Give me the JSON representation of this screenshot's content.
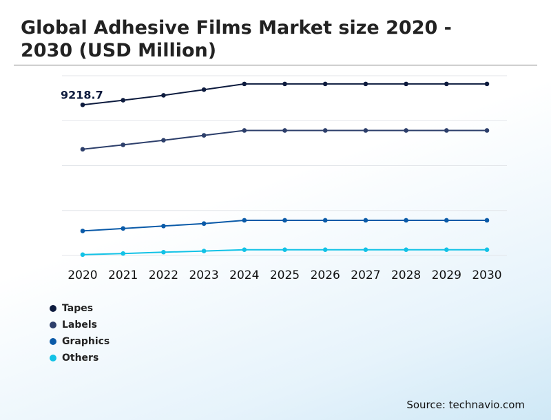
{
  "title": "Global Adhesive Films Market size 2020 - 2030 (USD Million)",
  "source": "Source: technavio.com",
  "chart_data": {
    "type": "line",
    "title": "Global Adhesive Films Market size 2020 - 2030 (USD Million)",
    "categories": [
      "2020",
      "2021",
      "2022",
      "2023",
      "2024",
      "2025",
      "2026",
      "2027",
      "2028",
      "2029",
      "2030"
    ],
    "ylim": [
      0,
      11000
    ],
    "grid": true,
    "legend": "bottom-left",
    "series": [
      {
        "name": "Tapes",
        "color": "#0d1b3e",
        "values": [
          9218.7,
          9500,
          9800,
          10150,
          10500,
          10500,
          10500,
          10500,
          10500,
          10500,
          10500
        ]
      },
      {
        "name": "Labels",
        "color": "#2d3f6b",
        "values": [
          6500,
          6770,
          7050,
          7350,
          7650,
          7650,
          7650,
          7650,
          7650,
          7650,
          7650
        ]
      },
      {
        "name": "Graphics",
        "color": "#0a5aa8",
        "values": [
          1500,
          1650,
          1800,
          1950,
          2150,
          2150,
          2150,
          2150,
          2150,
          2150,
          2150
        ]
      },
      {
        "name": "Others",
        "color": "#12c2e6",
        "values": [
          50,
          120,
          200,
          270,
          350,
          350,
          350,
          350,
          350,
          350,
          350
        ]
      }
    ],
    "annotations": [
      {
        "series": "Tapes",
        "index": 0,
        "text": "9218.7"
      }
    ]
  }
}
